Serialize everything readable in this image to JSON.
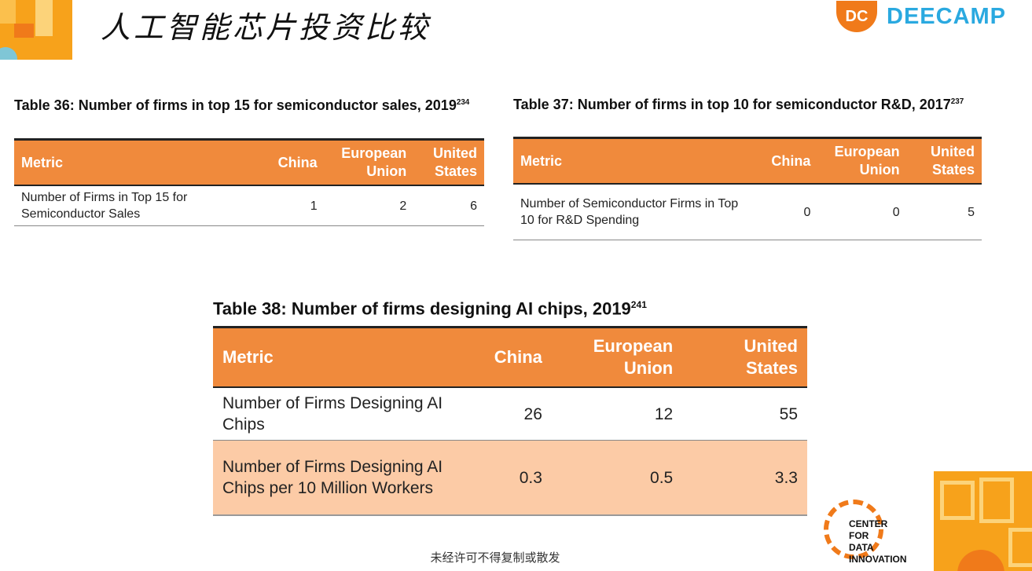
{
  "header": {
    "title": "人工智能芯片投资比较",
    "logo_mark": "DC",
    "logo_text": "DEECAMP"
  },
  "table36": {
    "caption": "Table 36: Number of firms in top 15 for semiconductor sales, 2019",
    "caption_sup": "234",
    "columns": [
      "Metric",
      "China",
      "European Union",
      "United States"
    ],
    "rows": [
      {
        "metric": "Number of Firms in Top 15 for Semiconductor Sales",
        "china": "1",
        "eu": "2",
        "us": "6"
      }
    ]
  },
  "table37": {
    "caption": "Table 37: Number of firms in top 10 for semiconductor R&D, 2017",
    "caption_sup": "237",
    "columns": [
      "Metric",
      "China",
      "European Union",
      "United States"
    ],
    "rows": [
      {
        "metric": "Number of Semiconductor Firms in Top 10 for R&D Spending",
        "china": "0",
        "eu": "0",
        "us": "5"
      }
    ]
  },
  "table38": {
    "caption": "Table 38: Number of firms designing AI chips, 2019",
    "caption_sup": "241",
    "columns": [
      "Metric",
      "China",
      "European Union",
      "United States"
    ],
    "rows": [
      {
        "metric": "Number of Firms Designing AI Chips",
        "china": "26",
        "eu": "12",
        "us": "55"
      },
      {
        "metric": "Number of Firms Designing AI Chips per 10 Million Workers",
        "china": "0.3",
        "eu": "0.5",
        "us": "3.3"
      }
    ]
  },
  "footer": {
    "notice": "未经许可不得复制或散发"
  },
  "cdi_logo": {
    "line1": "CENTER",
    "line2": "FOR",
    "line3": "DATA",
    "line4": "INNOVATION"
  }
}
